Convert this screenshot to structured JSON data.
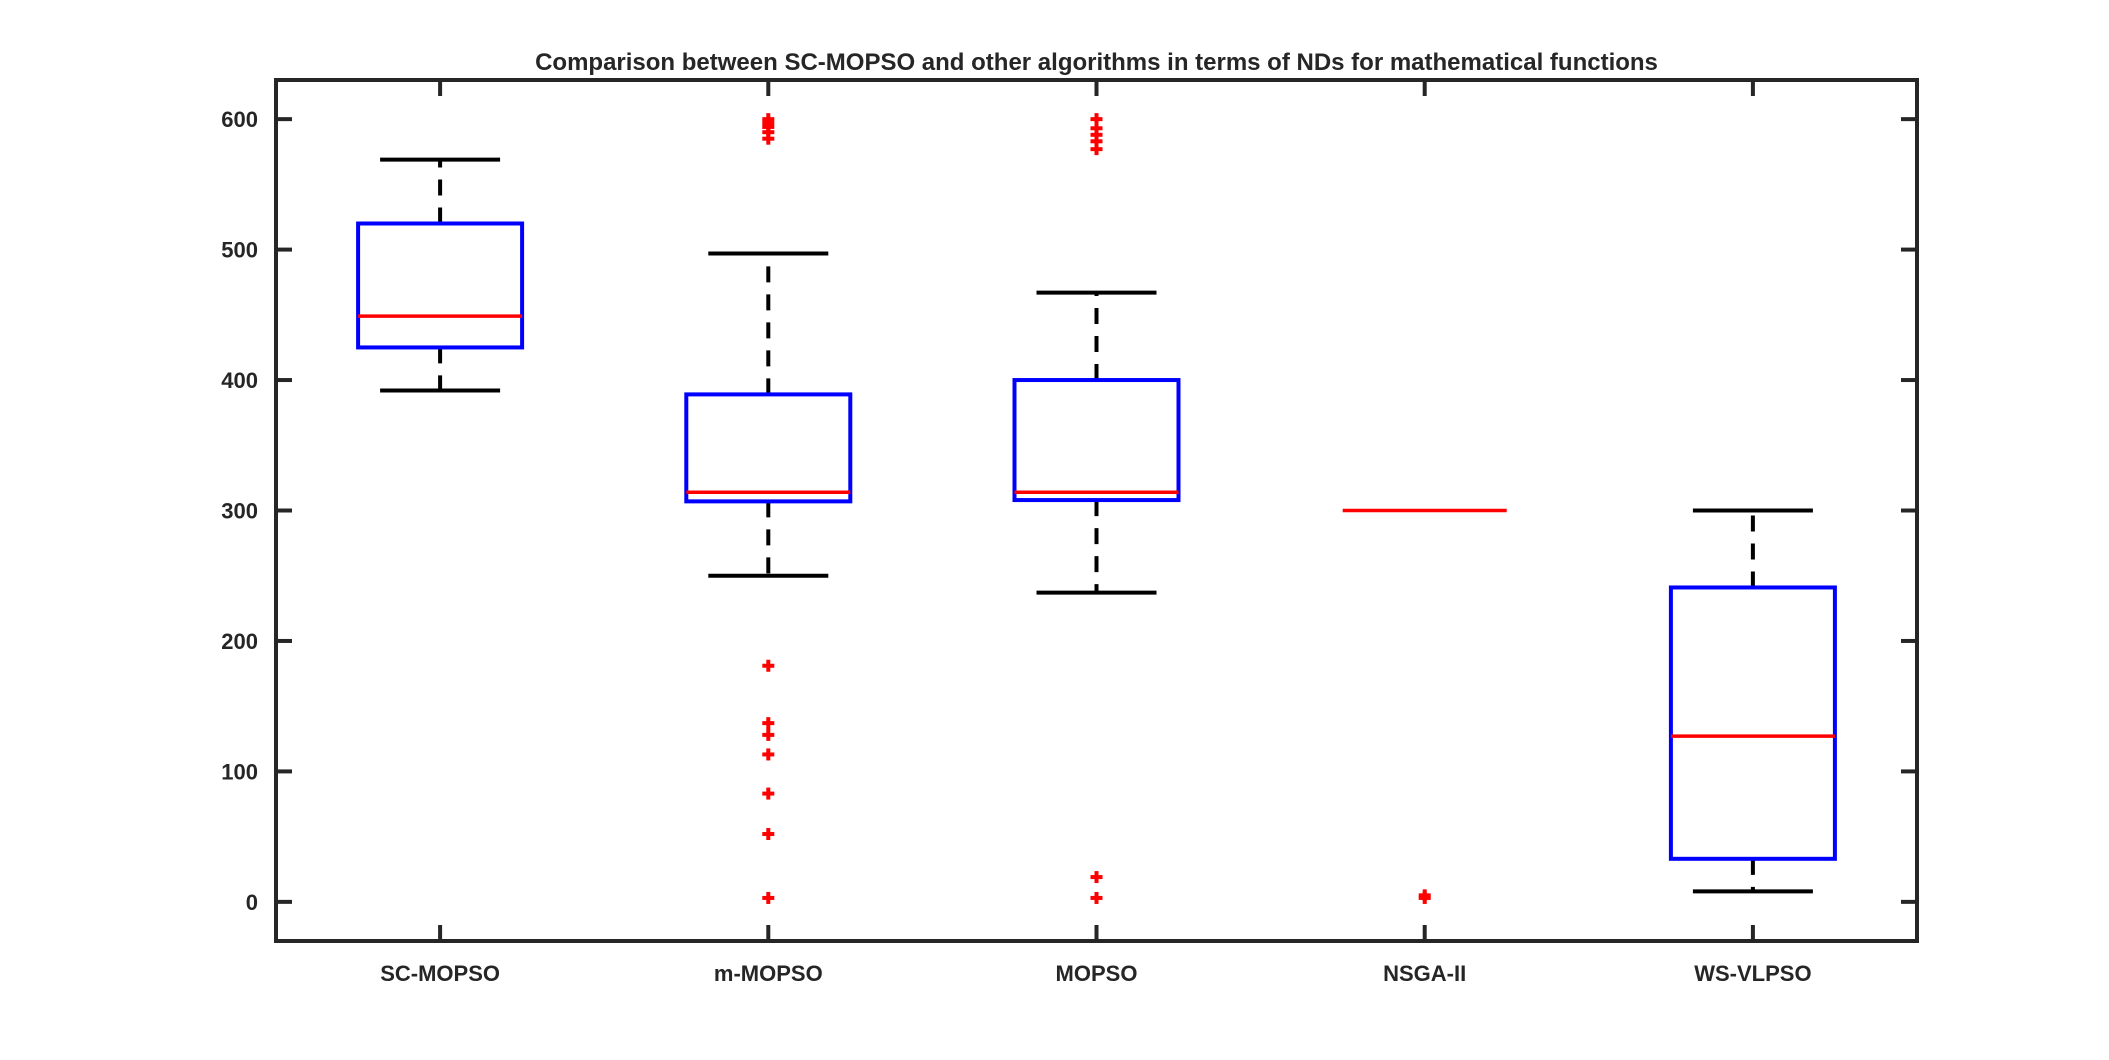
{
  "chart_data": {
    "type": "box",
    "title": "Comparison between SC-MOPSO and other algorithms in terms of NDs for mathematical functions",
    "xlabel": "",
    "ylabel": "",
    "ylim": [
      -30,
      630
    ],
    "yticks": [
      0,
      100,
      200,
      300,
      400,
      500,
      600
    ],
    "grid": false,
    "categories": [
      "SC-MOPSO",
      "m-MOPSO",
      "MOPSO",
      "NSGA-II",
      "WS-VLPSO"
    ],
    "boxes": [
      {
        "name": "SC-MOPSO",
        "whisker_low": 392,
        "q1": 425,
        "median": 449,
        "q3": 520,
        "whisker_high": 569,
        "outliers": []
      },
      {
        "name": "m-MOPSO",
        "whisker_low": 250,
        "q1": 307,
        "median": 314,
        "q3": 389,
        "whisker_high": 497,
        "outliers": [
          600,
          597,
          594,
          590,
          585,
          181,
          137,
          128,
          113,
          83,
          52,
          3
        ]
      },
      {
        "name": "MOPSO",
        "whisker_low": 237,
        "q1": 308,
        "median": 314,
        "q3": 400,
        "whisker_high": 467,
        "outliers": [
          600,
          593,
          588,
          583,
          577,
          19,
          3
        ]
      },
      {
        "name": "NSGA-II",
        "whisker_low": 300,
        "q1": 300,
        "median": 300,
        "q3": 300,
        "whisker_high": 300,
        "outliers": [
          5,
          3
        ]
      },
      {
        "name": "WS-VLPSO",
        "whisker_low": 8,
        "q1": 33,
        "median": 127,
        "q3": 241,
        "whisker_high": 300,
        "outliers": []
      }
    ],
    "colors": {
      "box": "#0000ff",
      "median": "#ff0000",
      "whisker": "#000000",
      "outlier": "#ff0000",
      "axes": "#262626"
    }
  }
}
